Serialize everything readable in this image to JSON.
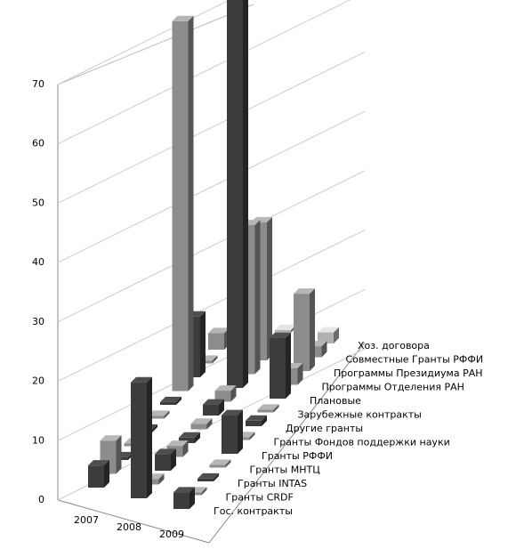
{
  "chart_data": {
    "type": "bar3d",
    "categories": [
      "2007",
      "2008",
      "2009"
    ],
    "ylim": [
      0,
      70
    ],
    "yticks": [
      0,
      10,
      20,
      30,
      40,
      50,
      60,
      70
    ],
    "grid": true,
    "series": [
      {
        "name": "Гос. контракты",
        "color": "#3c3c3c",
        "values": [
          4,
          21,
          3
        ]
      },
      {
        "name": "Гранты CRDF",
        "color": "#8c8c8c",
        "values": [
          6,
          1,
          0.5
        ]
      },
      {
        "name": "Гранты INTAS",
        "color": "#3c3c3c",
        "values": [
          0.5,
          3,
          0.5
        ]
      },
      {
        "name": "Гранты МНТЦ",
        "color": "#8c8c8c",
        "values": [
          0.5,
          2,
          0.5
        ]
      },
      {
        "name": "Гранты РФФИ",
        "color": "#3c3c3c",
        "values": [
          0.5,
          1,
          7
        ]
      },
      {
        "name": "Гранты Фондов поддержки науки",
        "color": "#8c8c8c",
        "values": [
          0.5,
          1,
          0.5
        ]
      },
      {
        "name": "Другие гранты",
        "color": "#3c3c3c",
        "values": [
          0.5,
          2,
          1
        ]
      },
      {
        "name": "Зарубежные контракты",
        "color": "#8c8c8c",
        "values": [
          67,
          2,
          0.5
        ]
      },
      {
        "name": "Плановые",
        "color": "#3c3c3c",
        "values": [
          11,
          71,
          11
        ]
      },
      {
        "name": "Программы Отделения  РАН",
        "color": "#8c8c8c",
        "values": [
          0.5,
          27,
          3
        ]
      },
      {
        "name": "Программы Президиума  РАН",
        "color": "#8c8c8c",
        "values": [
          3,
          25,
          14
        ]
      },
      {
        "name": "Совместные  Гранты РФФИ",
        "color": "#8c8c8c",
        "values": [
          0.5,
          1,
          2
        ]
      },
      {
        "name": "Хоз. договора",
        "color": "#b0b0b0",
        "values": [
          1,
          0.5,
          2
        ]
      }
    ]
  }
}
